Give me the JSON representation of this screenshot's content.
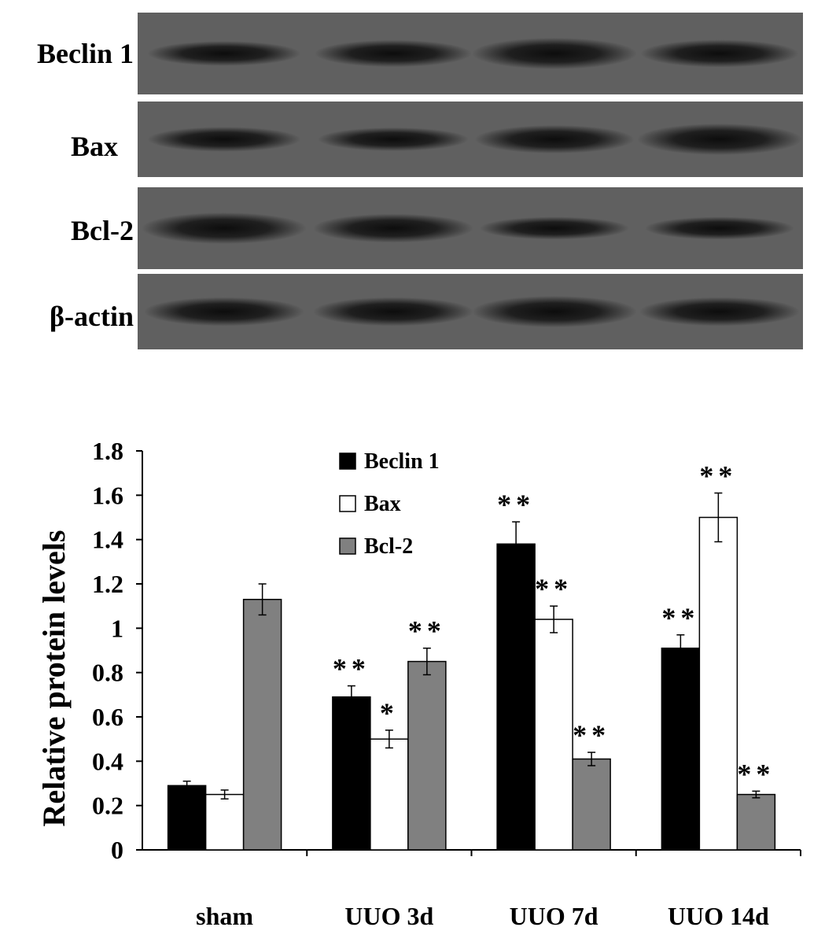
{
  "blot": {
    "rows": [
      {
        "label": "Beclin 1",
        "bands": [
          0.62,
          0.75,
          1.0,
          0.78
        ]
      },
      {
        "label": "Bax",
        "bands": [
          0.62,
          0.55,
          0.82,
          1.0
        ]
      },
      {
        "label": "Bcl-2",
        "bands": [
          1.0,
          0.85,
          0.5,
          0.5
        ]
      },
      {
        "label": "β-actin",
        "bands": [
          0.85,
          0.85,
          1.0,
          0.85
        ]
      }
    ]
  },
  "chart_data": {
    "type": "bar",
    "ylabel": "Relative  protein levels",
    "ylim": [
      0,
      1.8
    ],
    "yticks": [
      "0",
      "0.2",
      "0.4",
      "0.6",
      "0.8",
      "1",
      "1.2",
      "1.4",
      "1.6",
      "1.8"
    ],
    "categories": [
      "sham",
      "UUO 3d",
      "UUO 7d",
      "UUO 14d"
    ],
    "legend_position": "top-center",
    "series": [
      {
        "name": "Beclin 1",
        "color": "#000000",
        "values": [
          0.29,
          0.69,
          1.38,
          0.91
        ],
        "errors": [
          0.02,
          0.05,
          0.1,
          0.06
        ],
        "significance": [
          "",
          "**",
          "**",
          "**"
        ]
      },
      {
        "name": "Bax",
        "color": "#ffffff",
        "values": [
          0.25,
          0.5,
          1.04,
          1.5
        ],
        "errors": [
          0.02,
          0.04,
          0.06,
          0.11
        ],
        "significance": [
          "",
          "*",
          "**",
          "**"
        ]
      },
      {
        "name": "Bcl-2",
        "color": "#808080",
        "values": [
          1.13,
          0.85,
          0.41,
          0.25
        ],
        "errors": [
          0.07,
          0.06,
          0.03,
          0.015
        ],
        "significance": [
          "",
          "**",
          "**",
          "**"
        ]
      }
    ]
  }
}
